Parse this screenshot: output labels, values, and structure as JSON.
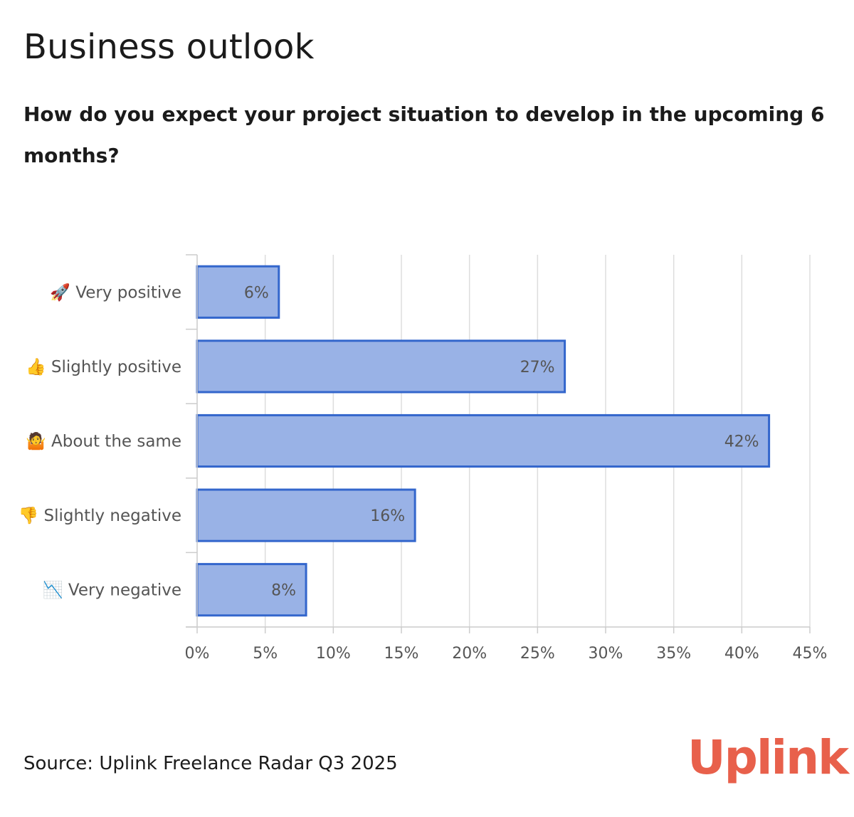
{
  "header": {
    "title": "Business outlook",
    "subtitle": "How do you expect your project situation to develop in the upcoming 6 months?"
  },
  "chart_data": {
    "type": "bar",
    "orientation": "horizontal",
    "categories": [
      {
        "icon": "🚀",
        "icon_name": "rocket-icon",
        "label": "Very positive"
      },
      {
        "icon": "👍",
        "icon_name": "thumbs-up-icon",
        "label": "Slightly positive"
      },
      {
        "icon": "🤷",
        "icon_name": "shrug-icon",
        "label": "About the same"
      },
      {
        "icon": "👎",
        "icon_name": "thumbs-down-icon",
        "label": "Slightly negative"
      },
      {
        "icon": "📉",
        "icon_name": "chart-decreasing-icon",
        "label": "Very negative"
      }
    ],
    "values": [
      6,
      27,
      42,
      16,
      8
    ],
    "data_labels": [
      "6%",
      "27%",
      "42%",
      "16%",
      "8%"
    ],
    "xlim": [
      0,
      45
    ],
    "x_ticks": [
      0,
      5,
      10,
      15,
      20,
      25,
      30,
      35,
      40,
      45
    ],
    "x_tick_labels": [
      "0%",
      "5%",
      "10%",
      "15%",
      "20%",
      "25%",
      "30%",
      "35%",
      "40%",
      "45%"
    ],
    "grid": true,
    "xlabel": "",
    "ylabel": "",
    "colors": {
      "bar_fill": "#99b2e6",
      "bar_stroke": "#3366cc",
      "grid": "#dddddd",
      "axis": "#cccccc",
      "label": "#555555",
      "value_label": "#555555"
    }
  },
  "footer": {
    "source": "Source: Uplink Freelance Radar Q3 2025",
    "brand": "Uplink",
    "brand_color": "#e8604b"
  }
}
